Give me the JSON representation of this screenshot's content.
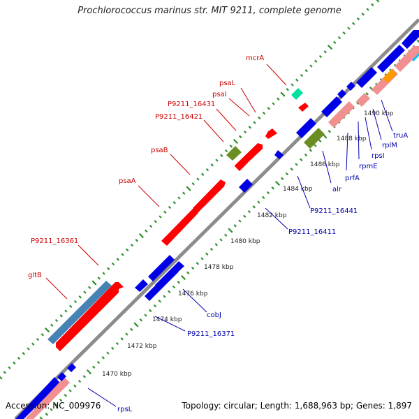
{
  "title": "Prochlorococcus marinus str. MIT 9211, complete genome",
  "footer": {
    "accession": "Accession: NC_009976",
    "stats": "Topology: circular; Length: 1,688,963 bp; Genes: 1,897"
  },
  "colors": {
    "backbone": "#8c8c8c",
    "tick_dots": "#2f8f2f",
    "forward_red": "#ff0000",
    "reverse_blue": "#0000e6",
    "pink_rna": "#f09090",
    "olive": "#6b8e23",
    "steelblue": "#4682b4",
    "teal": "#00e0a0",
    "orange": "#ff9900",
    "cyan": "#00c0ff",
    "red_label": "#cc0000",
    "blue_label": "#0000aa"
  },
  "kbp_ticks": [
    "1470 kbp",
    "1472 kbp",
    "1474 kbp",
    "1476 kbp",
    "1478 kbp",
    "1480 kbp",
    "1482 kbp",
    "1484 kbp",
    "1486 kbp",
    "1488 kbp",
    "1490 kbp"
  ],
  "forward_labels": [
    "mcrA",
    "psaL",
    "psaI",
    "P9211_16431",
    "P9211_16421",
    "psaB",
    "psaA",
    "P9211_16361",
    "gltB"
  ],
  "reverse_labels": [
    "truA",
    "rplM",
    "rpsI",
    "rpmE",
    "prfA",
    "alr",
    "P9211_16441",
    "P9211_16411",
    "cobJ",
    "P9211_16371",
    "rpsL"
  ]
}
